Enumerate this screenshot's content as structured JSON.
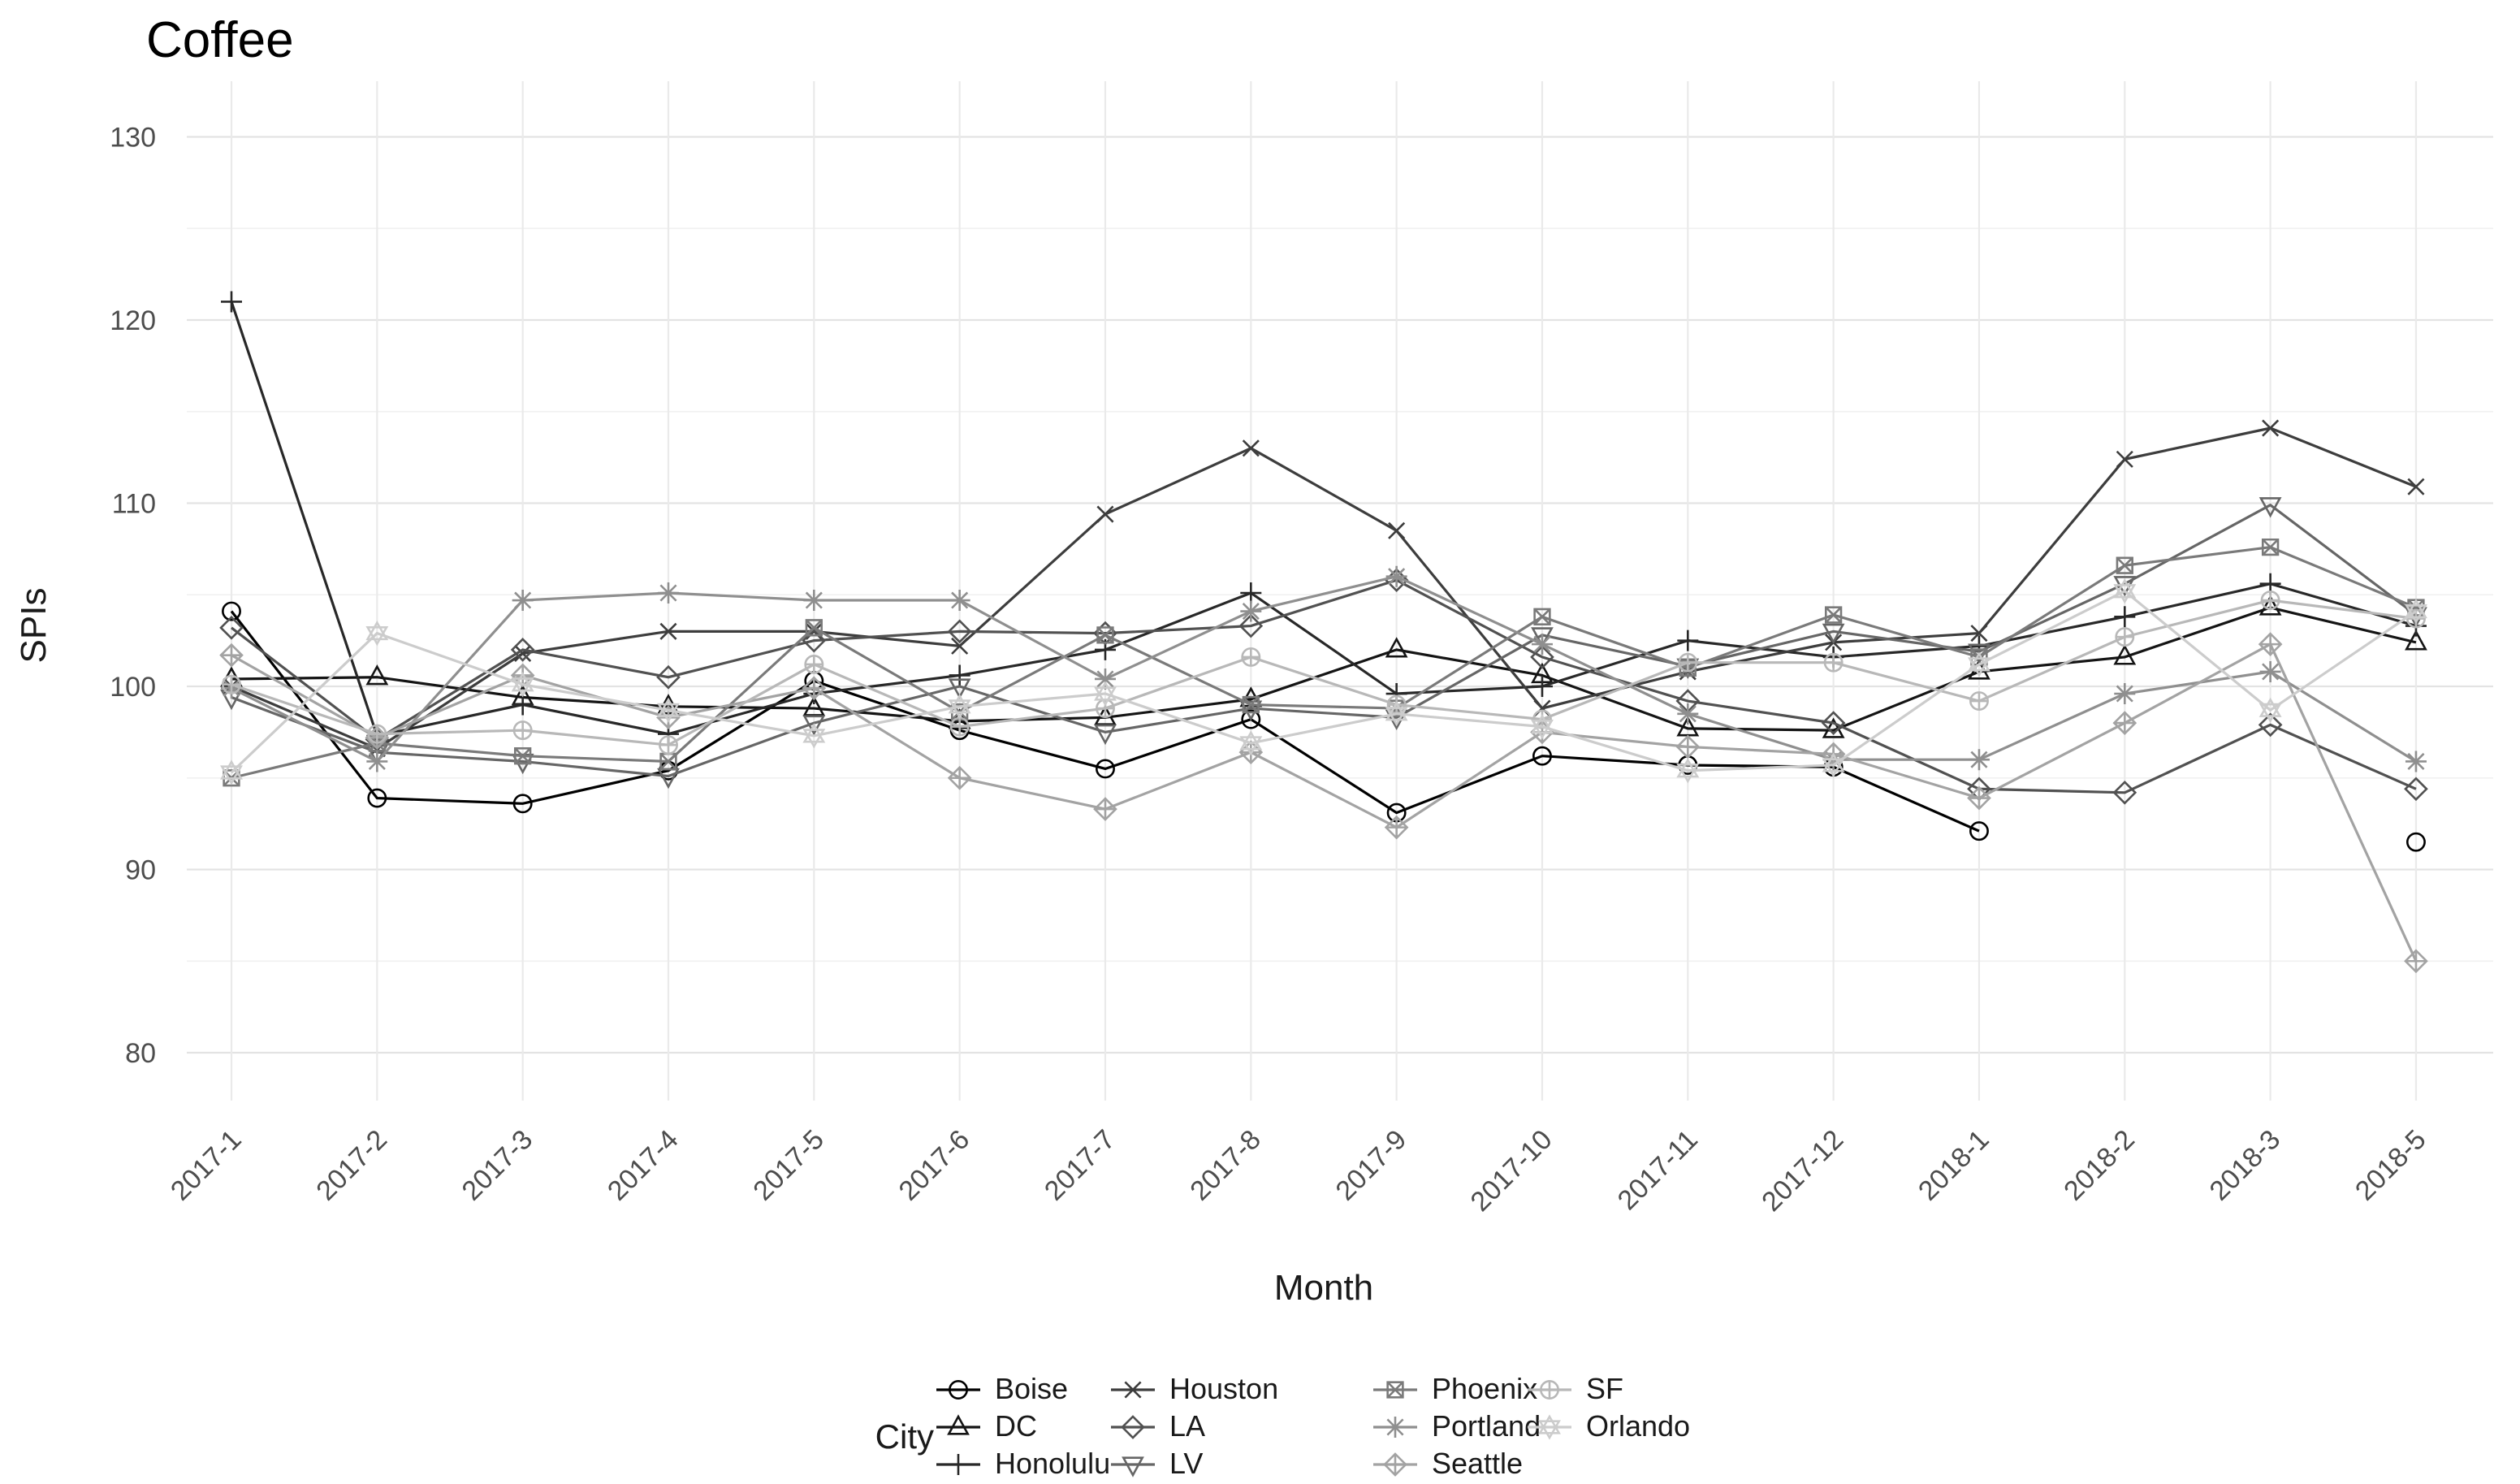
{
  "title": "Coffee",
  "chart_data": {
    "type": "line",
    "title": "Coffee",
    "xlabel": "Month",
    "ylabel": "SPIs",
    "legend_title": "City",
    "legend_position": "bottom",
    "grid": true,
    "background": "#ffffff",
    "major_grid_color": "#e3e3e3",
    "minor_grid_color": "#f1f1f1",
    "vertical_grid_color": "#eaeaea",
    "tick_label_color": "#4d4d4d",
    "categories": [
      "2017-1",
      "2017-2",
      "2017-3",
      "2017-4",
      "2017-5",
      "2017-6",
      "2017-7",
      "2017-8",
      "2017-9",
      "2017-10",
      "2017-11",
      "2017-12",
      "2018-1",
      "2018-2",
      "2018-3",
      "2018-5"
    ],
    "y_ticks": [
      80,
      90,
      100,
      110,
      120,
      130
    ],
    "y_minor_ticks": [
      85,
      95,
      105,
      115,
      125
    ],
    "ylim": [
      77,
      133
    ],
    "series": [
      {
        "name": "Boise",
        "marker": "circle",
        "color": "#000000",
        "values": [
          104.1,
          93.9,
          93.6,
          95.4,
          100.3,
          97.6,
          95.5,
          98.2,
          93.1,
          96.2,
          95.7,
          95.6,
          92.1,
          null,
          null,
          91.5
        ]
      },
      {
        "name": "DC",
        "marker": "triangle-up",
        "color": "#141414",
        "values": [
          100.4,
          100.5,
          99.4,
          98.9,
          98.8,
          98.1,
          98.3,
          99.3,
          102.0,
          100.6,
          97.7,
          97.6,
          100.8,
          101.6,
          104.3,
          102.4
        ]
      },
      {
        "name": "Honolulu",
        "marker": "plus",
        "color": "#282828",
        "values": [
          121.0,
          97.3,
          99.0,
          97.4,
          99.6,
          100.6,
          102.0,
          105.1,
          99.6,
          100.0,
          102.5,
          101.6,
          102.2,
          103.8,
          105.6,
          103.3
        ]
      },
      {
        "name": "Houston",
        "marker": "x",
        "color": "#3d3d3d",
        "values": [
          100.0,
          96.6,
          101.8,
          103.0,
          103.0,
          102.2,
          109.4,
          113.0,
          108.5,
          98.8,
          100.8,
          102.4,
          102.9,
          112.4,
          114.1,
          110.9
        ]
      },
      {
        "name": "LA",
        "marker": "diamond",
        "color": "#515151",
        "values": [
          103.2,
          97.1,
          102.0,
          100.5,
          102.5,
          103.0,
          102.9,
          103.3,
          105.8,
          101.6,
          99.2,
          98.0,
          94.4,
          94.2,
          97.9,
          94.4
        ]
      },
      {
        "name": "LV",
        "marker": "triangle-down",
        "color": "#666666",
        "values": [
          99.4,
          96.4,
          95.9,
          95.1,
          98.0,
          100.0,
          97.5,
          98.8,
          98.3,
          102.8,
          101.1,
          103.0,
          101.9,
          105.6,
          109.9,
          103.9
        ]
      },
      {
        "name": "Phoenix",
        "marker": "square-x",
        "color": "#7a7a7a",
        "values": [
          95.0,
          96.9,
          96.2,
          95.9,
          103.2,
          98.6,
          102.8,
          99.0,
          98.8,
          103.8,
          101.0,
          103.9,
          101.6,
          106.6,
          107.6,
          104.3
        ]
      },
      {
        "name": "Portland",
        "marker": "asterisk",
        "color": "#8f8f8f",
        "values": [
          99.9,
          95.9,
          104.7,
          105.1,
          104.7,
          104.7,
          100.4,
          104.1,
          106.0,
          102.3,
          98.5,
          96.0,
          96.0,
          99.6,
          100.8,
          95.9
        ]
      },
      {
        "name": "Seattle",
        "marker": "diamond-plus",
        "color": "#a3a3a3",
        "values": [
          101.7,
          97.2,
          100.6,
          98.3,
          99.9,
          95.0,
          93.3,
          96.4,
          92.3,
          97.5,
          96.7,
          96.3,
          93.9,
          98.0,
          102.3,
          85.0
        ]
      },
      {
        "name": "SF",
        "marker": "circle-plus",
        "color": "#b8b8b8",
        "values": [
          100.1,
          97.4,
          97.6,
          96.8,
          101.2,
          97.8,
          98.8,
          101.6,
          99.0,
          98.2,
          101.3,
          101.3,
          99.2,
          102.7,
          104.7,
          103.7
        ]
      },
      {
        "name": "Orlando",
        "marker": "star-6",
        "color": "#cccccc",
        "values": [
          95.3,
          102.9,
          100.1,
          98.7,
          97.3,
          98.9,
          99.6,
          96.9,
          98.5,
          97.8,
          95.4,
          95.7,
          101.2,
          105.2,
          98.7,
          104.1
        ]
      }
    ],
    "legend_columns": [
      [
        "Boise",
        "DC",
        "Honolulu"
      ],
      [
        "Houston",
        "LA",
        "LV"
      ],
      [
        "Phoenix",
        "Portland",
        "Seattle"
      ],
      [
        "SF",
        "Orlando"
      ]
    ]
  }
}
